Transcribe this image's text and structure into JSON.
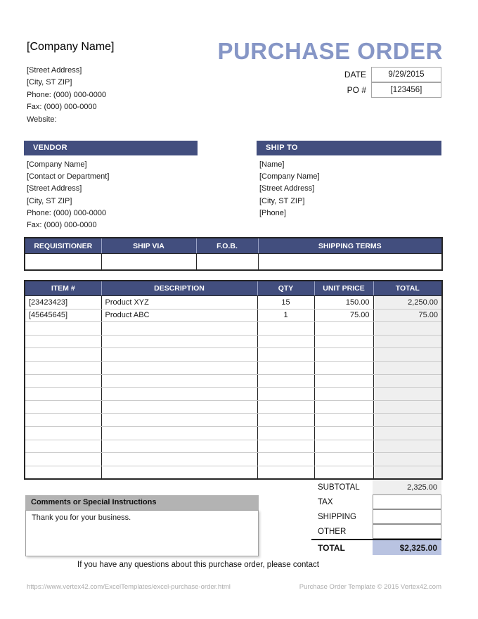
{
  "title": "PURCHASE ORDER",
  "company": {
    "name": "[Company Name]",
    "lines": [
      "[Street Address]",
      "[City, ST  ZIP]",
      "Phone: (000) 000-0000",
      "Fax: (000) 000-0000",
      "Website:"
    ]
  },
  "meta": {
    "date_label": "DATE",
    "date_value": "9/29/2015",
    "po_label": "PO #",
    "po_value": "[123456]"
  },
  "vendor": {
    "header": "VENDOR",
    "lines": [
      "[Company Name]",
      "[Contact or Department]",
      "[Street Address]",
      "[City, ST  ZIP]",
      "Phone: (000) 000-0000",
      "Fax: (000) 000-0000"
    ]
  },
  "ship_to": {
    "header": "SHIP TO",
    "lines": [
      "[Name]",
      "[Company Name]",
      "[Street Address]",
      "[City, ST  ZIP]",
      "[Phone]"
    ]
  },
  "order_info": {
    "headers": [
      "REQUISITIONER",
      "SHIP VIA",
      "F.O.B.",
      "SHIPPING TERMS"
    ],
    "values": [
      "",
      "",
      "",
      ""
    ]
  },
  "items": {
    "headers": [
      "ITEM #",
      "DESCRIPTION",
      "QTY",
      "UNIT PRICE",
      "TOTAL"
    ],
    "rows": [
      {
        "item": "[23423423]",
        "description": "Product XYZ",
        "qty": "15",
        "unit_price": "150.00",
        "total": "2,250.00"
      },
      {
        "item": "[45645645]",
        "description": "Product ABC",
        "qty": "1",
        "unit_price": "75.00",
        "total": "75.00"
      }
    ],
    "empty_row_count": 12
  },
  "totals": {
    "rows": [
      {
        "label": "SUBTOTAL",
        "value": "2,325.00"
      },
      {
        "label": "TAX",
        "value": ""
      },
      {
        "label": "SHIPPING",
        "value": ""
      },
      {
        "label": "OTHER",
        "value": ""
      }
    ],
    "total_label": "TOTAL",
    "total_value": "$2,325.00"
  },
  "comments": {
    "header": "Comments or Special Instructions",
    "text": "Thank you for your business."
  },
  "footer": {
    "question": "If you have any questions about this purchase order, please contact",
    "url": "https://www.vertex42.com/ExcelTemplates/excel-purchase-order.html",
    "credit": "Purchase Order Template © 2015 Vertex42.com"
  },
  "colors": {
    "header_bar": "#424E7E",
    "title_text": "#8696C6",
    "total_highlight": "#B9C3E1",
    "shaded_column": "#EFEFEF",
    "comments_header": "#B3B3B3"
  }
}
